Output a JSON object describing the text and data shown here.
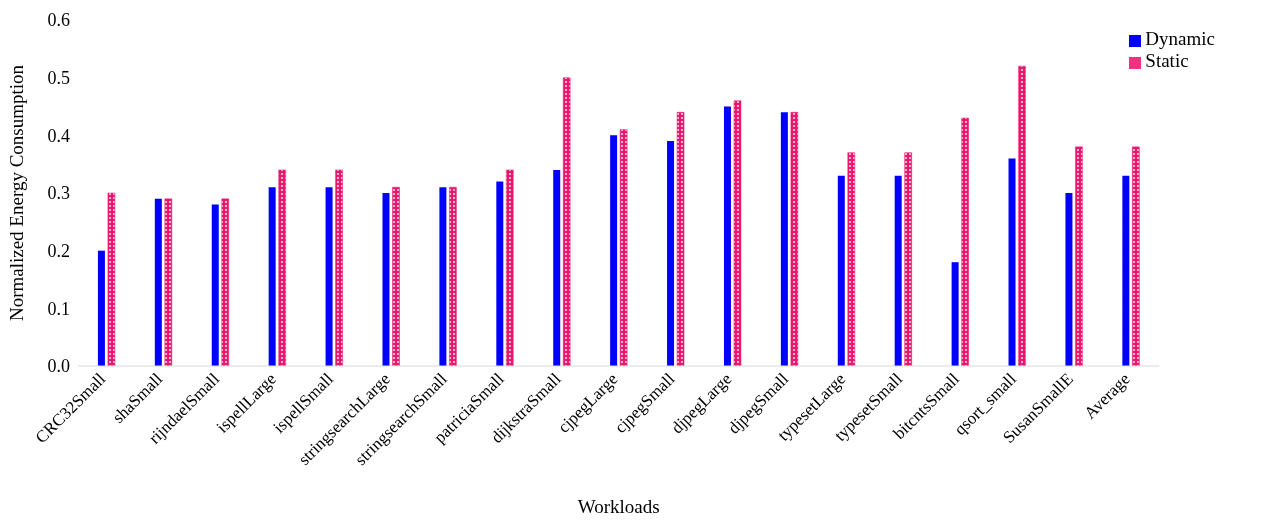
{
  "chart_data": {
    "type": "bar",
    "xlabel": "Workloads",
    "ylabel": "Normalized Energy Consumption",
    "categories": [
      "CRC32Small",
      "shaSmall",
      "rijndaelSmall",
      "ispellLarge",
      "ispellSmall",
      "stringsearchLarge",
      "stringsearchSmall",
      "patriciaSmall",
      "dijkstraSmall",
      "cjpegLarge",
      "cjpegSmall",
      "djpegLarge",
      "djpegSmall",
      "typesetLarge",
      "typesetSmall",
      "bitcntsSmall",
      "qsort_small",
      "SusanSmallE",
      "Average"
    ],
    "series": [
      {
        "name": "Dynamic",
        "color": "#0000ff",
        "values": [
          0.2,
          0.29,
          0.28,
          0.31,
          0.31,
          0.3,
          0.31,
          0.32,
          0.34,
          0.4,
          0.39,
          0.45,
          0.44,
          0.33,
          0.33,
          0.18,
          0.36,
          0.3,
          0.33
        ]
      },
      {
        "name": "Static",
        "color": "#e8186f",
        "values": [
          0.3,
          0.29,
          0.29,
          0.34,
          0.34,
          0.31,
          0.31,
          0.34,
          0.5,
          0.41,
          0.44,
          0.46,
          0.44,
          0.37,
          0.37,
          0.43,
          0.52,
          0.38,
          0.38
        ]
      }
    ],
    "ylim": [
      0,
      0.6
    ],
    "yticks": [
      {
        "value": 0,
        "label": "0.0"
      },
      {
        "value": 0.1,
        "label": "0.1"
      },
      {
        "value": 0.2,
        "label": "0.2"
      },
      {
        "value": 0.3,
        "label": "0.3"
      },
      {
        "value": 0.4,
        "label": "0.4"
      },
      {
        "value": 0.5,
        "label": "0.5"
      },
      {
        "value": 0.6,
        "label": "0.6"
      }
    ],
    "grid": false,
    "legend": "top right"
  }
}
